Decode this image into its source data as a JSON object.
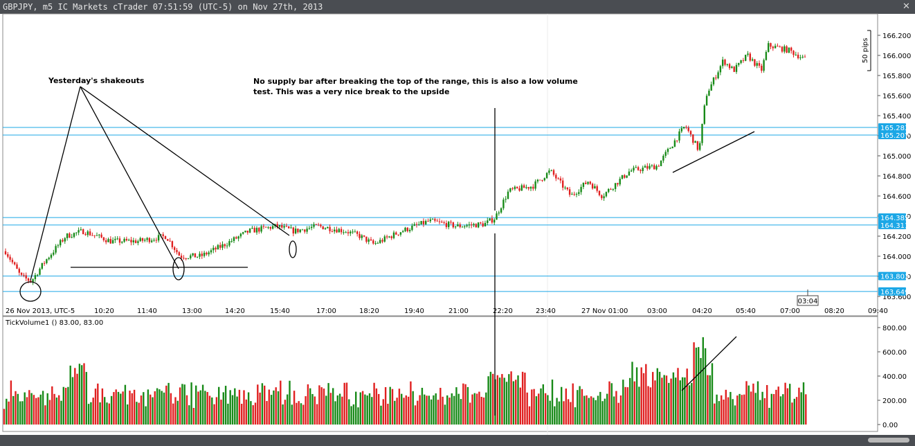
{
  "window": {
    "title": "GBPJPY, m5 IC Markets cTrader 07:51:59 (UTC-5) on Nov 27th, 2013",
    "close_icon": "close-icon"
  },
  "price_axis": {
    "ticks": [
      "166.200",
      "166.000",
      "165.800",
      "165.600",
      "165.400",
      "165.200",
      "165.000",
      "164.800",
      "164.600",
      "164.400",
      "164.200",
      "164.000",
      "163.800",
      "163.600"
    ],
    "pips_label": "50 pips"
  },
  "levels": {
    "labels": [
      "165.283",
      "165.207",
      "164.385",
      "164.311",
      "163.803",
      "163.649"
    ],
    "color": "#1ba7e6"
  },
  "time_axis": {
    "labels": [
      "26 Nov 2013, UTC-5",
      "10:20",
      "11:40",
      "13:00",
      "14:20",
      "15:40",
      "17:00",
      "18:20",
      "19:40",
      "21:00",
      "22:20",
      "23:40",
      "27 Nov 01:00",
      "03:00",
      "04:20",
      "05:40",
      "07:00",
      "08:20",
      "09:40"
    ],
    "countdown": "03:04"
  },
  "volume_panel": {
    "label": "TickVolume1 () 83.00, 83.00",
    "ticks": [
      "800.00",
      "600.00",
      "400.00",
      "200.00",
      "0.00"
    ]
  },
  "annotations": {
    "shakeouts": "Yesterday's shakeouts",
    "break_line1": "No supply bar after breaking the top of the range, this is also a low volume",
    "break_line2": "test. This was a very nice break to the upside"
  },
  "colors": {
    "bull": "#188a18",
    "bear": "#e02020"
  }
}
